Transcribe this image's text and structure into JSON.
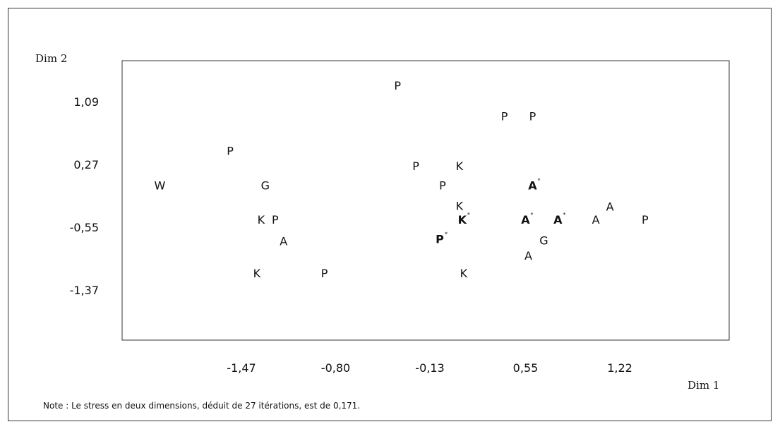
{
  "chart_data": {
    "type": "scatter",
    "xlabel": "Dim 1",
    "ylabel": "Dim 2",
    "x_ticks": [
      "-1,47",
      "-0,80",
      "-0,13",
      "0,55",
      "1,22"
    ],
    "y_ticks": [
      "1,09",
      "0,27",
      "-0,55",
      "-1,37"
    ],
    "x_tick_values": [
      -1.47,
      -0.8,
      -0.13,
      0.55,
      1.22
    ],
    "y_tick_values": [
      1.09,
      0.27,
      -0.55,
      -1.37
    ],
    "xlim": [
      -2.0,
      2.4
    ],
    "ylim": [
      -1.9,
      1.6
    ],
    "grid": false,
    "points": [
      {
        "label": "W",
        "x": -2.05,
        "y": 0.0,
        "bold": false,
        "star": false
      },
      {
        "label": "P",
        "x": -1.55,
        "y": 0.45,
        "bold": false,
        "star": false
      },
      {
        "label": "G",
        "x": -1.3,
        "y": 0.0,
        "bold": false,
        "star": false
      },
      {
        "label": "K",
        "x": -1.33,
        "y": -0.45,
        "bold": false,
        "star": false
      },
      {
        "label": "P",
        "x": -1.23,
        "y": -0.45,
        "bold": false,
        "star": false
      },
      {
        "label": "A",
        "x": -1.17,
        "y": -0.73,
        "bold": false,
        "star": false
      },
      {
        "label": "K",
        "x": -1.36,
        "y": -1.15,
        "bold": false,
        "star": false
      },
      {
        "label": "P",
        "x": -0.88,
        "y": -1.15,
        "bold": false,
        "star": false
      },
      {
        "label": "P",
        "x": -0.36,
        "y": 1.3,
        "bold": false,
        "star": false
      },
      {
        "label": "P",
        "x": 0.4,
        "y": 0.9,
        "bold": false,
        "star": false
      },
      {
        "label": "P",
        "x": 0.6,
        "y": 0.9,
        "bold": false,
        "star": false
      },
      {
        "label": "P",
        "x": -0.23,
        "y": 0.25,
        "bold": false,
        "star": false
      },
      {
        "label": "K",
        "x": 0.08,
        "y": 0.25,
        "bold": false,
        "star": false
      },
      {
        "label": "P",
        "x": -0.04,
        "y": 0.0,
        "bold": false,
        "star": false
      },
      {
        "label": "A",
        "x": 0.6,
        "y": 0.0,
        "bold": true,
        "star": true
      },
      {
        "label": "K",
        "x": 0.08,
        "y": -0.27,
        "bold": false,
        "star": false
      },
      {
        "label": "A",
        "x": 1.15,
        "y": -0.28,
        "bold": false,
        "star": false
      },
      {
        "label": "K",
        "x": 0.1,
        "y": -0.45,
        "bold": true,
        "star": true
      },
      {
        "label": "A",
        "x": 0.55,
        "y": -0.45,
        "bold": true,
        "star": true
      },
      {
        "label": "A",
        "x": 0.78,
        "y": -0.45,
        "bold": true,
        "star": true
      },
      {
        "label": "A",
        "x": 1.05,
        "y": -0.45,
        "bold": false,
        "star": false
      },
      {
        "label": "P",
        "x": 1.4,
        "y": -0.45,
        "bold": false,
        "star": false
      },
      {
        "label": "P",
        "x": -0.06,
        "y": -0.7,
        "bold": true,
        "star": true
      },
      {
        "label": "G",
        "x": 0.68,
        "y": -0.72,
        "bold": false,
        "star": false
      },
      {
        "label": "A",
        "x": 0.57,
        "y": -0.92,
        "bold": false,
        "star": false
      },
      {
        "label": "K",
        "x": 0.11,
        "y": -1.15,
        "bold": false,
        "star": false
      }
    ]
  },
  "note": "Note : Le stress en deux dimensions, déduit de 27 itérations, est de 0,171."
}
